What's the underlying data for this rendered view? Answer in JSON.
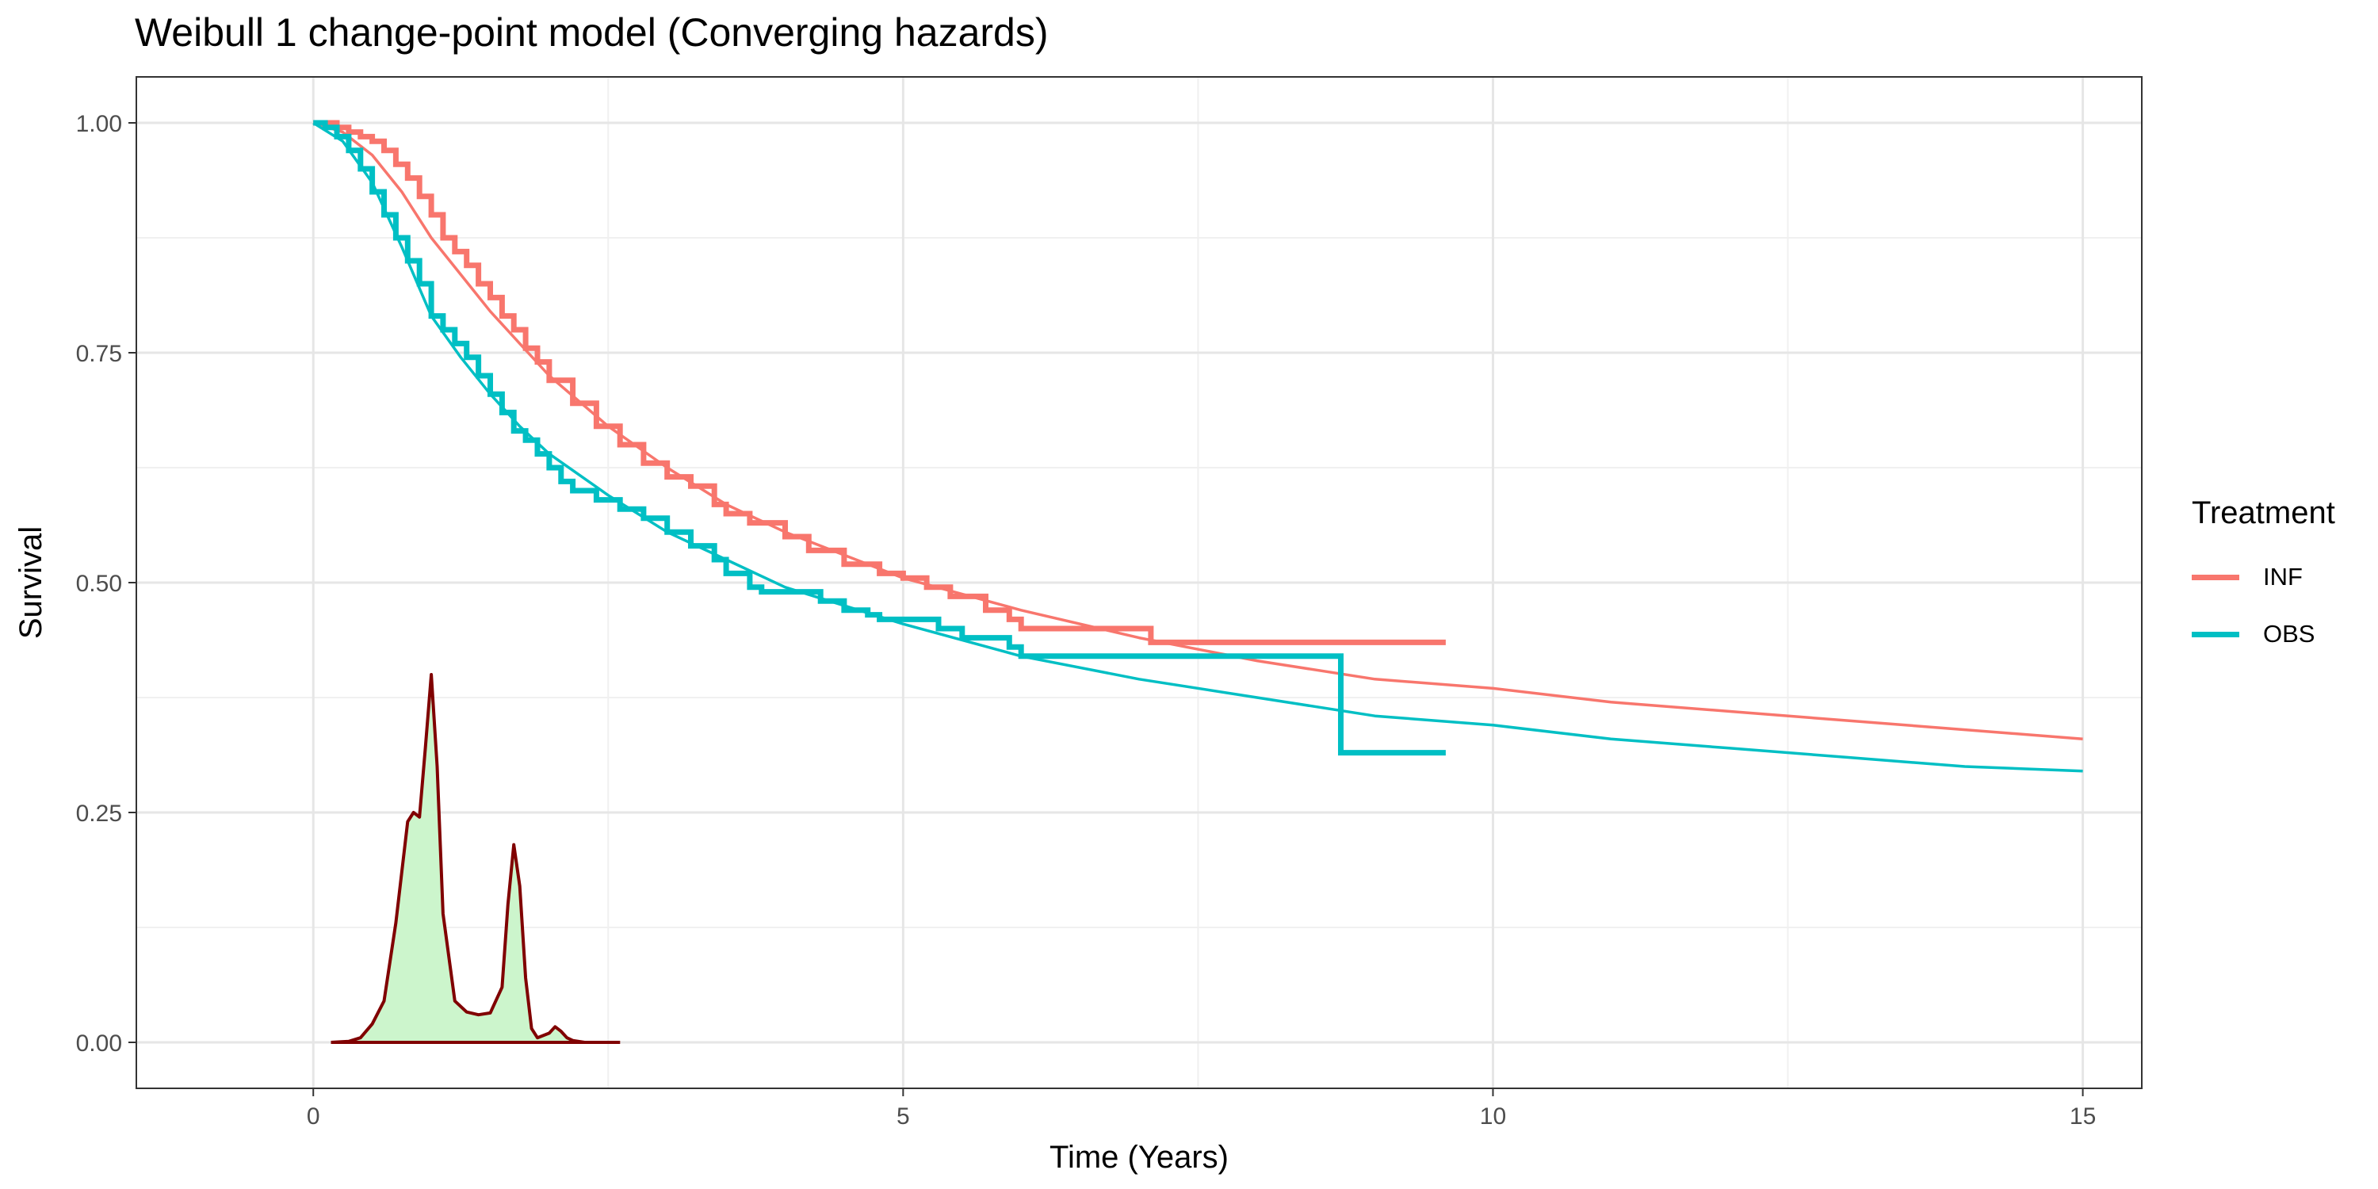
{
  "chart_data": {
    "type": "line",
    "title": "Weibull 1 change-point model (Converging hazards)",
    "xlabel": "Time (Years)",
    "ylabel": "Survival",
    "xlim": [
      -1.5,
      15.5
    ],
    "ylim": [
      -0.05,
      1.05
    ],
    "x_ticks": [
      0,
      5,
      10,
      15
    ],
    "x_tick_labels": [
      "0",
      "5",
      "10",
      "15"
    ],
    "y_ticks": [
      0,
      0.25,
      0.5,
      0.75,
      1
    ],
    "y_tick_labels": [
      "0.00",
      "0.25",
      "0.50",
      "0.75",
      "1.00"
    ],
    "grid": true,
    "legend": {
      "title": "Treatment",
      "position": "right",
      "entries": [
        {
          "label": "INF",
          "color": "#F8766D"
        },
        {
          "label": "OBS",
          "color": "#00BFC4"
        }
      ]
    },
    "series": [
      {
        "name": "INF",
        "kind": "kaplan-meier",
        "color": "#F8766D",
        "x": [
          0,
          0.1,
          0.2,
          0.3,
          0.4,
          0.5,
          0.6,
          0.7,
          0.8,
          0.9,
          1.0,
          1.1,
          1.2,
          1.3,
          1.4,
          1.5,
          1.6,
          1.7,
          1.8,
          1.9,
          2.0,
          2.2,
          2.4,
          2.6,
          2.8,
          3.0,
          3.2,
          3.4,
          3.5,
          3.7,
          4.0,
          4.2,
          4.5,
          4.8,
          5.0,
          5.2,
          5.4,
          5.7,
          5.9,
          6.0,
          6.5,
          7.0,
          7.1,
          8.0,
          9.0,
          9.6
        ],
        "y": [
          1.0,
          1.0,
          0.995,
          0.99,
          0.985,
          0.98,
          0.97,
          0.955,
          0.94,
          0.92,
          0.9,
          0.875,
          0.86,
          0.845,
          0.825,
          0.81,
          0.79,
          0.775,
          0.755,
          0.74,
          0.72,
          0.695,
          0.67,
          0.65,
          0.63,
          0.615,
          0.605,
          0.585,
          0.575,
          0.565,
          0.55,
          0.535,
          0.52,
          0.51,
          0.505,
          0.495,
          0.485,
          0.47,
          0.46,
          0.45,
          0.45,
          0.45,
          0.435,
          0.435,
          0.435,
          0.435
        ]
      },
      {
        "name": "OBS",
        "kind": "kaplan-meier",
        "color": "#00BFC4",
        "x": [
          0,
          0.1,
          0.2,
          0.3,
          0.4,
          0.5,
          0.6,
          0.7,
          0.8,
          0.9,
          1.0,
          1.1,
          1.2,
          1.3,
          1.4,
          1.5,
          1.6,
          1.7,
          1.8,
          1.9,
          2.0,
          2.1,
          2.2,
          2.4,
          2.6,
          2.8,
          3.0,
          3.2,
          3.4,
          3.5,
          3.7,
          3.8,
          4.0,
          4.3,
          4.5,
          4.7,
          4.8,
          5.0,
          5.3,
          5.5,
          5.8,
          5.9,
          6.0,
          7.0,
          8.0,
          8.7,
          8.71,
          9.6
        ],
        "y": [
          1.0,
          0.995,
          0.985,
          0.97,
          0.95,
          0.925,
          0.9,
          0.875,
          0.85,
          0.825,
          0.79,
          0.775,
          0.76,
          0.745,
          0.725,
          0.705,
          0.685,
          0.665,
          0.655,
          0.64,
          0.625,
          0.61,
          0.6,
          0.59,
          0.58,
          0.57,
          0.555,
          0.54,
          0.525,
          0.51,
          0.495,
          0.49,
          0.49,
          0.48,
          0.47,
          0.465,
          0.46,
          0.46,
          0.45,
          0.44,
          0.44,
          0.43,
          0.42,
          0.42,
          0.42,
          0.42,
          0.315,
          0.315
        ]
      },
      {
        "name": "INF",
        "kind": "model-fit",
        "color": "#F8766D",
        "x": [
          0,
          0.25,
          0.5,
          0.75,
          1.0,
          1.25,
          1.5,
          1.75,
          2.0,
          2.5,
          3.0,
          3.5,
          4.0,
          5.0,
          6.0,
          7.0,
          8.0,
          9.0,
          10.0,
          11.0,
          12.0,
          13.0,
          14.0,
          15.0
        ],
        "y": [
          1.0,
          0.99,
          0.965,
          0.925,
          0.875,
          0.835,
          0.795,
          0.76,
          0.725,
          0.67,
          0.625,
          0.585,
          0.555,
          0.505,
          0.47,
          0.44,
          0.415,
          0.395,
          0.385,
          0.37,
          0.36,
          0.35,
          0.34,
          0.33
        ]
      },
      {
        "name": "OBS",
        "kind": "model-fit",
        "color": "#00BFC4",
        "x": [
          0,
          0.25,
          0.5,
          0.75,
          1.0,
          1.25,
          1.5,
          1.75,
          2.0,
          2.5,
          3.0,
          3.5,
          4.0,
          5.0,
          6.0,
          7.0,
          8.0,
          9.0,
          10.0,
          11.0,
          12.0,
          13.0,
          14.0,
          15.0
        ],
        "y": [
          1.0,
          0.98,
          0.935,
          0.865,
          0.79,
          0.745,
          0.705,
          0.67,
          0.64,
          0.595,
          0.555,
          0.525,
          0.495,
          0.455,
          0.42,
          0.395,
          0.375,
          0.355,
          0.345,
          0.33,
          0.32,
          0.31,
          0.3,
          0.295
        ]
      },
      {
        "name": "change-point density",
        "kind": "density",
        "color": "#800000",
        "fill": "#CCF5CC",
        "x": [
          0.15,
          0.3,
          0.4,
          0.5,
          0.6,
          0.7,
          0.8,
          0.85,
          0.9,
          0.95,
          1.0,
          1.05,
          1.1,
          1.2,
          1.3,
          1.4,
          1.5,
          1.6,
          1.65,
          1.7,
          1.75,
          1.8,
          1.85,
          1.9,
          2.0,
          2.05,
          2.1,
          2.15,
          2.2,
          2.3,
          2.6
        ],
        "y": [
          0,
          0.001,
          0.005,
          0.02,
          0.045,
          0.13,
          0.24,
          0.25,
          0.245,
          0.32,
          0.4,
          0.3,
          0.14,
          0.045,
          0.033,
          0.03,
          0.032,
          0.06,
          0.15,
          0.215,
          0.17,
          0.07,
          0.015,
          0.005,
          0.01,
          0.017,
          0.012,
          0.005,
          0.002,
          0,
          0
        ]
      }
    ]
  }
}
